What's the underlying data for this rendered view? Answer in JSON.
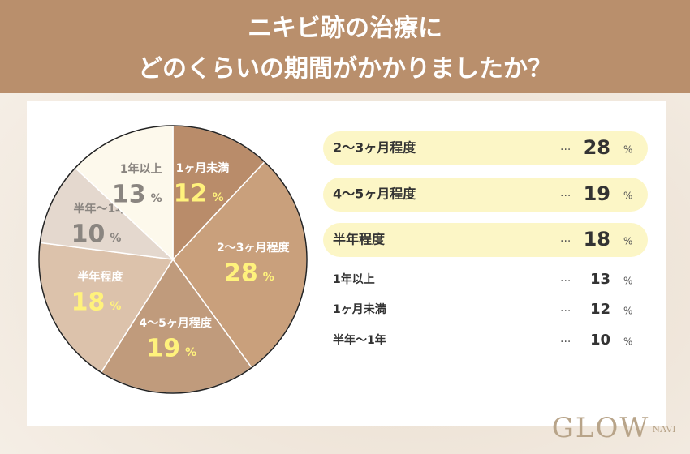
{
  "chart_data": {
    "type": "pie",
    "title": "ニキビ跡の治療に",
    "subtitle": "どのくらいの期間がかかりましたか？",
    "categories": [
      "1ヶ月未満",
      "2〜3ヶ月程度",
      "4〜5ヶ月程度",
      "半年程度",
      "半年〜1年",
      "1年以上"
    ],
    "values": [
      12,
      28,
      19,
      18,
      10,
      13
    ],
    "colors": [
      "#b98c6a",
      "#c9a07c",
      "#c09b7c",
      "#dcc2ab",
      "#e4d8ce",
      "#fdf9ec"
    ],
    "unit": "%"
  },
  "ranking": {
    "leader": "...",
    "highlighted_rows": 3,
    "rows": [
      {
        "label": "2〜3ヶ月程度",
        "value": 28
      },
      {
        "label": "4〜5ヶ月程度",
        "value": 19
      },
      {
        "label": "半年程度",
        "value": 18
      },
      {
        "label": "1年以上",
        "value": 13
      },
      {
        "label": "1ヶ月未満",
        "value": 12
      },
      {
        "label": "半年〜1年",
        "value": 10
      }
    ]
  },
  "brand": {
    "name": "GLOW",
    "sub": "NAVI"
  }
}
